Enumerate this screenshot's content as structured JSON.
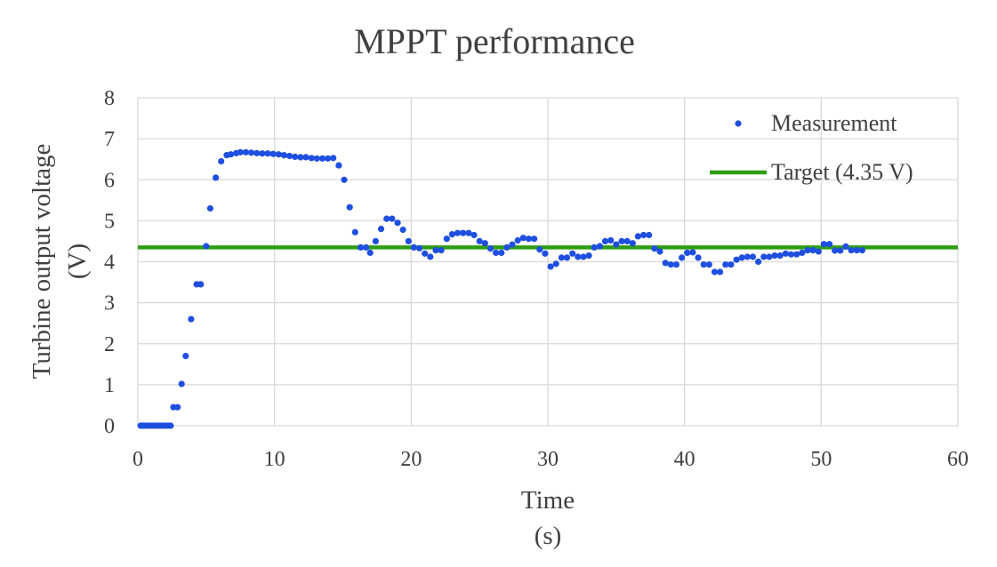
{
  "chart_data": {
    "type": "scatter",
    "title": "MPPT performance",
    "xlabel": "Time",
    "xlabel_unit": "(s)",
    "ylabel": "Turbine output voltage",
    "ylabel_unit": "(V)",
    "xlim": [
      0,
      60
    ],
    "ylim": [
      0,
      8
    ],
    "x_ticks": [
      0,
      10,
      20,
      30,
      40,
      50,
      60
    ],
    "y_ticks": [
      0,
      1,
      2,
      3,
      4,
      5,
      6,
      7,
      8
    ],
    "grid": true,
    "legend_position": "top-right",
    "colors": {
      "measurement": "#1f4fe0",
      "target": "#2e9e11",
      "text": "#404040",
      "grid": "#d9d9d9"
    },
    "series": [
      {
        "name": "Measurement",
        "kind": "scatter",
        "points": [
          [
            0.2,
            0
          ],
          [
            0.4,
            0
          ],
          [
            0.6,
            0
          ],
          [
            0.8,
            0
          ],
          [
            1.0,
            0
          ],
          [
            1.2,
            0
          ],
          [
            1.4,
            0
          ],
          [
            1.6,
            0
          ],
          [
            1.8,
            0
          ],
          [
            2.0,
            0
          ],
          [
            2.2,
            0
          ],
          [
            2.4,
            0
          ],
          [
            2.6,
            0.45
          ],
          [
            2.9,
            0.45
          ],
          [
            3.2,
            1.02
          ],
          [
            3.5,
            1.7
          ],
          [
            3.9,
            2.6
          ],
          [
            4.3,
            3.45
          ],
          [
            4.6,
            3.45
          ],
          [
            5.0,
            4.38
          ],
          [
            5.3,
            5.3
          ],
          [
            5.7,
            6.05
          ],
          [
            6.1,
            6.45
          ],
          [
            6.5,
            6.6
          ],
          [
            6.8,
            6.62
          ],
          [
            7.2,
            6.65
          ],
          [
            7.5,
            6.67
          ],
          [
            7.9,
            6.67
          ],
          [
            8.3,
            6.66
          ],
          [
            8.7,
            6.65
          ],
          [
            9.1,
            6.64
          ],
          [
            9.5,
            6.64
          ],
          [
            9.9,
            6.63
          ],
          [
            10.3,
            6.62
          ],
          [
            10.7,
            6.6
          ],
          [
            11.1,
            6.58
          ],
          [
            11.5,
            6.56
          ],
          [
            11.9,
            6.55
          ],
          [
            12.3,
            6.55
          ],
          [
            12.7,
            6.53
          ],
          [
            13.1,
            6.52
          ],
          [
            13.5,
            6.52
          ],
          [
            13.9,
            6.52
          ],
          [
            14.3,
            6.53
          ],
          [
            14.7,
            6.35
          ],
          [
            15.1,
            6.0
          ],
          [
            15.5,
            5.33
          ],
          [
            15.9,
            4.72
          ],
          [
            16.3,
            4.35
          ],
          [
            16.7,
            4.35
          ],
          [
            17.0,
            4.22
          ],
          [
            17.4,
            4.5
          ],
          [
            17.8,
            4.8
          ],
          [
            18.2,
            5.05
          ],
          [
            18.6,
            5.05
          ],
          [
            19.0,
            4.95
          ],
          [
            19.4,
            4.78
          ],
          [
            19.8,
            4.5
          ],
          [
            20.2,
            4.35
          ],
          [
            20.6,
            4.33
          ],
          [
            21.0,
            4.2
          ],
          [
            21.4,
            4.12
          ],
          [
            21.8,
            4.28
          ],
          [
            22.2,
            4.28
          ],
          [
            22.6,
            4.56
          ],
          [
            23.0,
            4.67
          ],
          [
            23.4,
            4.7
          ],
          [
            23.8,
            4.7
          ],
          [
            24.2,
            4.7
          ],
          [
            24.6,
            4.65
          ],
          [
            25.0,
            4.5
          ],
          [
            25.4,
            4.45
          ],
          [
            25.8,
            4.32
          ],
          [
            26.2,
            4.22
          ],
          [
            26.6,
            4.22
          ],
          [
            27.0,
            4.35
          ],
          [
            27.4,
            4.42
          ],
          [
            27.8,
            4.52
          ],
          [
            28.2,
            4.58
          ],
          [
            28.6,
            4.56
          ],
          [
            29.0,
            4.56
          ],
          [
            29.4,
            4.3
          ],
          [
            29.8,
            4.2
          ],
          [
            30.2,
            3.88
          ],
          [
            30.6,
            3.95
          ],
          [
            31.0,
            4.1
          ],
          [
            31.4,
            4.1
          ],
          [
            31.8,
            4.2
          ],
          [
            32.2,
            4.12
          ],
          [
            32.6,
            4.12
          ],
          [
            33.0,
            4.15
          ],
          [
            33.4,
            4.35
          ],
          [
            33.8,
            4.38
          ],
          [
            34.2,
            4.5
          ],
          [
            34.6,
            4.52
          ],
          [
            35.0,
            4.42
          ],
          [
            35.4,
            4.5
          ],
          [
            35.8,
            4.5
          ],
          [
            36.2,
            4.45
          ],
          [
            36.6,
            4.62
          ],
          [
            37.0,
            4.65
          ],
          [
            37.4,
            4.65
          ],
          [
            37.8,
            4.32
          ],
          [
            38.2,
            4.25
          ],
          [
            38.6,
            3.97
          ],
          [
            39.0,
            3.93
          ],
          [
            39.4,
            3.93
          ],
          [
            39.8,
            4.1
          ],
          [
            40.2,
            4.22
          ],
          [
            40.6,
            4.23
          ],
          [
            41.0,
            4.1
          ],
          [
            41.4,
            3.93
          ],
          [
            41.8,
            3.93
          ],
          [
            42.2,
            3.75
          ],
          [
            42.6,
            3.75
          ],
          [
            43.0,
            3.93
          ],
          [
            43.4,
            3.93
          ],
          [
            43.8,
            4.05
          ],
          [
            44.2,
            4.1
          ],
          [
            44.6,
            4.12
          ],
          [
            45.0,
            4.12
          ],
          [
            45.4,
            4.0
          ],
          [
            45.8,
            4.12
          ],
          [
            46.2,
            4.12
          ],
          [
            46.6,
            4.15
          ],
          [
            47.0,
            4.15
          ],
          [
            47.4,
            4.2
          ],
          [
            47.8,
            4.18
          ],
          [
            48.2,
            4.18
          ],
          [
            48.6,
            4.22
          ],
          [
            49.0,
            4.28
          ],
          [
            49.4,
            4.28
          ],
          [
            49.8,
            4.25
          ],
          [
            50.2,
            4.43
          ],
          [
            50.6,
            4.43
          ],
          [
            51.0,
            4.27
          ],
          [
            51.4,
            4.27
          ],
          [
            51.8,
            4.37
          ],
          [
            52.2,
            4.28
          ],
          [
            52.6,
            4.28
          ],
          [
            53.0,
            4.28
          ]
        ]
      },
      {
        "name": "Target (4.35 V)",
        "kind": "line",
        "points": [
          [
            0,
            4.35
          ],
          [
            60,
            4.35
          ]
        ]
      }
    ]
  }
}
